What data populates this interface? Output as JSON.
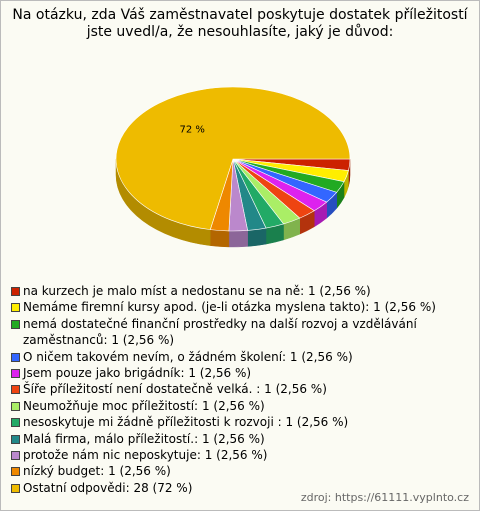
{
  "chart_data": {
    "type": "pie",
    "title": "Na otázku, zda Váš zaměstnavatel poskytuje dostatek příležitostí jste uvedl/a, že nesouhlasíte, jaký je důvod:",
    "categories": [
      "na kurzech je malo míst a nedostanu se na ně:",
      "Nemáme firemní kursy apod. (je-li otázka myslena takto):",
      "nemá dostatečné finanční prostředky na další rozvoj a vzdělávání zaměstnanců:",
      "O ničem takovém nevím, o žádném školení:",
      "Jsem pouze jako brigádník:",
      "Šíře příležitostí není dostatečně velká. :",
      "Neumožňuje moc příležitostí:",
      " nesoskytuje mi žádně příležitosti k rozvoji :",
      "Malá firma, málo příležitostí.:",
      "protože nám nic neposkytuje:",
      "nízký budget:",
      "Ostatní odpovědi:"
    ],
    "values": [
      2.56,
      2.56,
      2.56,
      2.56,
      2.56,
      2.56,
      2.56,
      2.56,
      2.56,
      2.56,
      2.56,
      72
    ],
    "value_labels": [
      "1 (2,56 %)",
      "1 (2,56 %)",
      "1 (2,56 %)",
      "1 (2,56 %)",
      "1 (2,56 %)",
      "1 (2,56 %)",
      "1 (2,56 %)",
      "1 (2,56 %)",
      "1 (2,56 %)",
      "1 (2,56 %)",
      "1 (2,56 %)",
      "28 (72 %)"
    ],
    "pie_labels": [
      null,
      null,
      null,
      null,
      null,
      null,
      null,
      null,
      null,
      null,
      null,
      "72 %"
    ],
    "colors": [
      "#cc2200",
      "#ffee00",
      "#22aa22",
      "#3366ff",
      "#dd22ee",
      "#ee4411",
      "#aaee66",
      "#22aa66",
      "#228888",
      "#bb88cc",
      "#ee8800",
      "#eebb00"
    ],
    "source": "zdroj: https://61111.vyplnto.cz"
  }
}
